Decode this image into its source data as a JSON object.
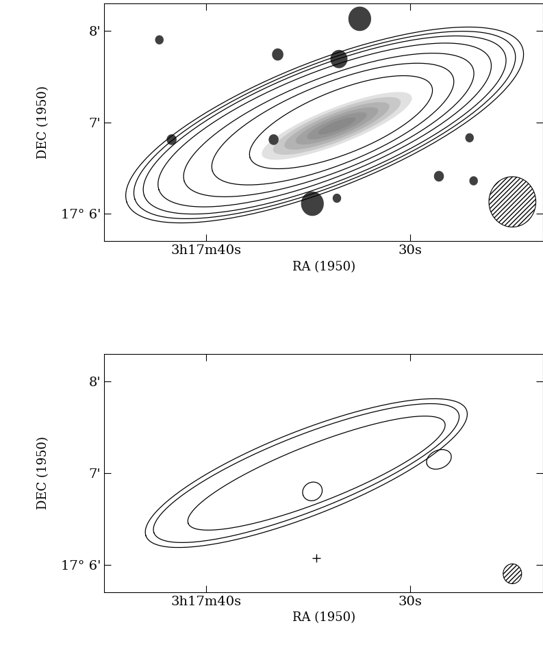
{
  "chart_data": [
    {
      "type": "contour",
      "xlabel": "RA (1950)",
      "ylabel": "DEC (1950)",
      "xlim": [
        45,
        23.5
      ],
      "ylim": [
        5.7,
        8.3
      ],
      "xticks": [
        {
          "value": 40,
          "label": "3h17m40s"
        },
        {
          "value": 30,
          "label": "30s"
        }
      ],
      "yticks": [
        {
          "value": 6,
          "label": "17° 6'"
        },
        {
          "value": 7,
          "label": "7'"
        },
        {
          "value": 8,
          "label": "8'"
        }
      ],
      "dec_base": 17,
      "contours": [
        {
          "ra": 34.2,
          "dec": 6.97,
          "major_arcsec": 148,
          "minor_arcsec": 42,
          "pa_deg": 110
        },
        {
          "ra": 34.2,
          "dec": 6.97,
          "major_arcsec": 142,
          "minor_arcsec": 40,
          "pa_deg": 110
        },
        {
          "ra": 34.2,
          "dec": 6.97,
          "major_arcsec": 135,
          "minor_arcsec": 38,
          "pa_deg": 110
        },
        {
          "ra": 34.2,
          "dec": 6.97,
          "major_arcsec": 124,
          "minor_arcsec": 35,
          "pa_deg": 110
        },
        {
          "ra": 34.0,
          "dec": 6.97,
          "major_arcsec": 108,
          "minor_arcsec": 31,
          "pa_deg": 110
        },
        {
          "ra": 33.8,
          "dec": 6.98,
          "major_arcsec": 90,
          "minor_arcsec": 27,
          "pa_deg": 110
        },
        {
          "ra": 33.4,
          "dec": 7.0,
          "major_arcsec": 68,
          "minor_arcsec": 21,
          "pa_deg": 110
        }
      ],
      "optical": {
        "ra": 33.6,
        "dec": 6.96,
        "major_arcsec": 56,
        "minor_arcsec": 12,
        "pa_deg": 110
      },
      "stars": [
        {
          "ra": 32.48,
          "dec": 8.13,
          "size_arcsec": 8
        },
        {
          "ra": 33.5,
          "dec": 7.69,
          "size_arcsec": 6
        },
        {
          "ra": 34.8,
          "dec": 6.11,
          "size_arcsec": 8
        },
        {
          "ra": 36.5,
          "dec": 7.74,
          "size_arcsec": 4
        },
        {
          "ra": 41.7,
          "dec": 6.81,
          "size_arcsec": 3.5
        },
        {
          "ra": 42.3,
          "dec": 7.9,
          "size_arcsec": 3
        },
        {
          "ra": 36.7,
          "dec": 6.81,
          "size_arcsec": 3.5
        },
        {
          "ra": 27.1,
          "dec": 6.83,
          "size_arcsec": 3
        },
        {
          "ra": 28.6,
          "dec": 6.41,
          "size_arcsec": 3.5
        },
        {
          "ra": 26.9,
          "dec": 6.36,
          "size_arcsec": 3
        },
        {
          "ra": 33.6,
          "dec": 6.17,
          "size_arcsec": 3
        }
      ],
      "beam": {
        "ra": 25.0,
        "dec": 6.13,
        "diameter_arcsec": 33
      },
      "markers": []
    },
    {
      "type": "contour",
      "xlabel": "RA (1950)",
      "ylabel": "DEC (1950)",
      "xlim": [
        45,
        23.5
      ],
      "ylim": [
        5.7,
        8.3
      ],
      "xticks": [
        {
          "value": 40,
          "label": "3h17m40s"
        },
        {
          "value": 30,
          "label": "30s"
        }
      ],
      "yticks": [
        {
          "value": 6,
          "label": "17° 6'"
        },
        {
          "value": 7,
          "label": "7'"
        },
        {
          "value": 8,
          "label": "8'"
        }
      ],
      "dec_base": 17,
      "contours": [
        {
          "ra": 35.1,
          "dec": 7.0,
          "major_arcsec": 120,
          "minor_arcsec": 28,
          "pa_deg": 110
        },
        {
          "ra": 35.1,
          "dec": 7.0,
          "major_arcsec": 114,
          "minor_arcsec": 25,
          "pa_deg": 110
        },
        {
          "ra": 34.6,
          "dec": 7.0,
          "major_arcsec": 96,
          "minor_arcsec": 19,
          "pa_deg": 110
        },
        {
          "ra": 34.8,
          "dec": 6.8,
          "major_arcsec": 7,
          "minor_arcsec": 6,
          "pa_deg": 110
        },
        {
          "ra": 28.6,
          "dec": 7.15,
          "major_arcsec": 9,
          "minor_arcsec": 6,
          "pa_deg": 110
        }
      ],
      "optical": null,
      "stars": [],
      "beam": {
        "ra": 25.0,
        "dec": 5.9,
        "diameter_arcsec": 13
      },
      "markers": [
        {
          "ra": 34.6,
          "dec": 6.07,
          "marker": "+"
        }
      ]
    }
  ]
}
